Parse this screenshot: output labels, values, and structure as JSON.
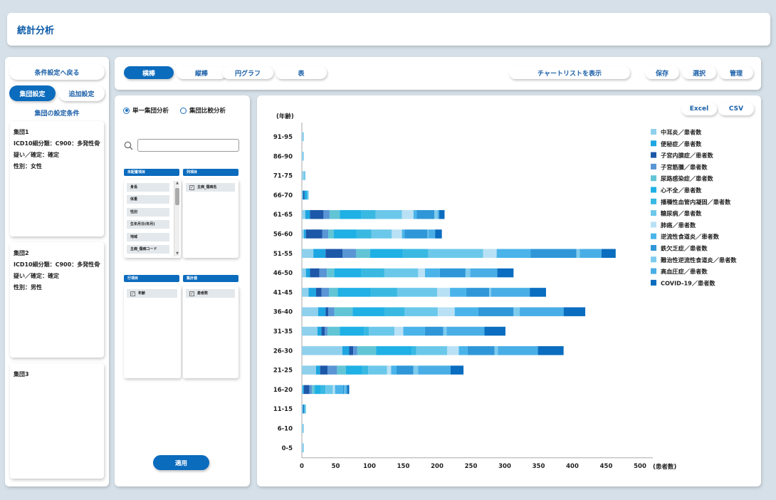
{
  "header": {
    "title": "統計分析"
  },
  "left": {
    "back_button": "条件設定へ戻る",
    "tab_group": "集団設定",
    "tab_add": "追加設定",
    "section_title": "集団の設定条件",
    "groups": [
      {
        "name": "集団1",
        "lines": [
          "ICD10細分類：C900：多発性骨髄腫",
          "疑い／確定：確定",
          "性別：女性"
        ]
      },
      {
        "name": "集団2",
        "lines": [
          "ICD10細分類：C900：多発性骨髄腫",
          "疑い／確定：確定",
          "性別：男性"
        ]
      },
      {
        "name": "集団3",
        "lines": []
      }
    ]
  },
  "toolbar": {
    "tabs": [
      "横棒",
      "縦棒",
      "円グラフ",
      "表"
    ],
    "active_tab": 0,
    "show_list": "チャートリストを表示",
    "save": "保存",
    "select": "選択",
    "manage": "管理"
  },
  "settings": {
    "radio_single": "単一集団分析",
    "radio_compare": "集団比較分析",
    "unselected_header": "未配置項目",
    "column_header": "列項目",
    "row_header": "行項目",
    "aggregate_header": "集計値",
    "unselected_items": [
      "身長",
      "体重",
      "性別",
      "生年月日(年月)",
      "地域",
      "主病_傷病コード"
    ],
    "column_items": [
      "主病_傷病名"
    ],
    "row_items": [
      "年齢"
    ],
    "aggregate_items": [
      "患者数"
    ],
    "apply": "適用"
  },
  "export": {
    "excel": "Excel",
    "csv": "CSV"
  },
  "chart_data": {
    "type": "bar",
    "orientation": "horizontal",
    "stacked": true,
    "ylabel": "(年齢)",
    "xlabel": "(患者数)",
    "xlim": [
      0,
      500
    ],
    "xticks": [
      0,
      50,
      100,
      150,
      200,
      250,
      300,
      350,
      400,
      450,
      500
    ],
    "legend_position": "right",
    "categories": [
      "91-95",
      "86-90",
      "71-75",
      "66-70",
      "61-65",
      "56-60",
      "51-55",
      "46-50",
      "41-45",
      "36-40",
      "31-35",
      "26-30",
      "21-25",
      "16-20",
      "11-15",
      "6-10",
      "0-5"
    ],
    "series": [
      {
        "name": "中耳炎／患者数",
        "color": "#8fd0ec",
        "values": [
          3,
          3,
          3,
          1,
          5,
          3,
          17,
          6,
          10,
          24,
          23,
          60,
          21,
          1,
          1,
          3,
          3
        ]
      },
      {
        "name": "便秘症／患者数",
        "color": "#1ea6e2",
        "values": [
          0,
          0,
          0,
          1,
          7,
          3,
          18,
          6,
          11,
          11,
          6,
          10,
          6,
          2,
          1,
          0,
          0
        ]
      },
      {
        "name": "子宮内膜症／患者数",
        "color": "#1d57a8",
        "values": [
          0,
          0,
          0,
          2,
          20,
          24,
          25,
          14,
          8,
          4,
          5,
          6,
          11,
          8,
          1,
          0,
          0
        ]
      },
      {
        "name": "子宮筋腫／患者数",
        "color": "#5a95d5",
        "values": [
          0,
          0,
          0,
          0,
          9,
          9,
          20,
          11,
          11,
          9,
          4,
          6,
          14,
          4,
          0,
          0,
          0
        ]
      },
      {
        "name": "尿路感染症／患者数",
        "color": "#62c5d6",
        "values": [
          0,
          0,
          1,
          0,
          15,
          8,
          21,
          11,
          13,
          27,
          18,
          28,
          13,
          4,
          0,
          0,
          0
        ]
      },
      {
        "name": "心不全／患者数",
        "color": "#1fb0e5",
        "values": [
          0,
          0,
          0,
          4,
          32,
          34,
          48,
          40,
          49,
          48,
          36,
          53,
          24,
          9,
          1,
          0,
          0
        ]
      },
      {
        "name": "播種性血管内凝固／患者数",
        "color": "#39b9e2",
        "values": [
          0,
          0,
          0,
          0,
          21,
          22,
          38,
          34,
          39,
          29,
          7,
          6,
          9,
          7,
          1,
          0,
          0
        ]
      },
      {
        "name": "糖尿病／患者数",
        "color": "#6cc8ea",
        "values": [
          0,
          0,
          0,
          2,
          39,
          30,
          81,
          50,
          59,
          49,
          38,
          46,
          28,
          11,
          1,
          0,
          0
        ]
      },
      {
        "name": "肺癌／患者数",
        "color": "#b9e1f5",
        "values": [
          0,
          0,
          0,
          0,
          17,
          15,
          20,
          10,
          19,
          25,
          13,
          17,
          6,
          3,
          0,
          0,
          0
        ]
      },
      {
        "name": "逆流性食道炎／患者数",
        "color": "#4ab4ea",
        "values": [
          0,
          0,
          1,
          0,
          5,
          4,
          50,
          22,
          24,
          35,
          32,
          13,
          8,
          12,
          0,
          0,
          0
        ]
      },
      {
        "name": "鉄欠乏症／患者数",
        "color": "#2f97d8",
        "values": [
          0,
          0,
          0,
          0,
          26,
          34,
          68,
          38,
          34,
          52,
          27,
          40,
          25,
          2,
          0,
          0,
          0
        ]
      },
      {
        "name": "難治性逆流性食道炎／患者数",
        "color": "#7ecbee",
        "values": [
          0,
          0,
          0,
          0,
          5,
          1,
          5,
          7,
          3,
          9,
          5,
          5,
          7,
          1,
          0,
          0,
          0
        ]
      },
      {
        "name": "高血圧症／患者数",
        "color": "#4aaee6",
        "values": [
          0,
          0,
          0,
          0,
          2,
          10,
          32,
          40,
          57,
          65,
          56,
          59,
          48,
          3,
          0,
          0,
          0
        ]
      },
      {
        "name": "COVID-19／患者数",
        "color": "#0a6dbf",
        "values": [
          0,
          0,
          0,
          0,
          8,
          10,
          21,
          24,
          24,
          32,
          31,
          38,
          19,
          3,
          0,
          0,
          0
        ]
      }
    ]
  }
}
